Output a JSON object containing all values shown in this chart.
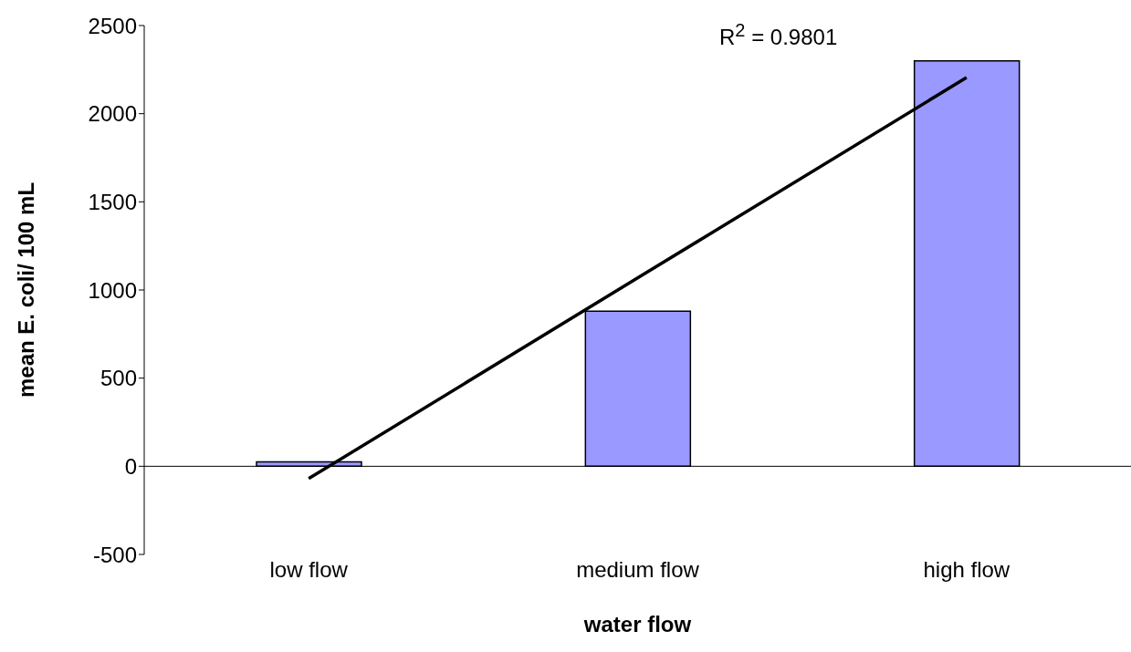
{
  "chart_data": {
    "type": "bar",
    "xlabel": "water flow",
    "ylabel": "mean E. coli/ 100 mL",
    "categories": [
      "low flow",
      "medium flow",
      "high flow"
    ],
    "series": [
      {
        "color": "#9999ff",
        "values": [
          25,
          880,
          2300
        ]
      },
      {
        "type": "line",
        "color": "#000000",
        "values": [
          -70,
          1068,
          2205
        ]
      }
    ],
    "annotations": [
      "R$^{2}$ = 0.9801"
    ],
    "ylim": [
      -500,
      2500
    ],
    "yticks": [
      -500,
      0,
      500,
      1000,
      1500,
      2000,
      2500
    ],
    "legend": false
  }
}
